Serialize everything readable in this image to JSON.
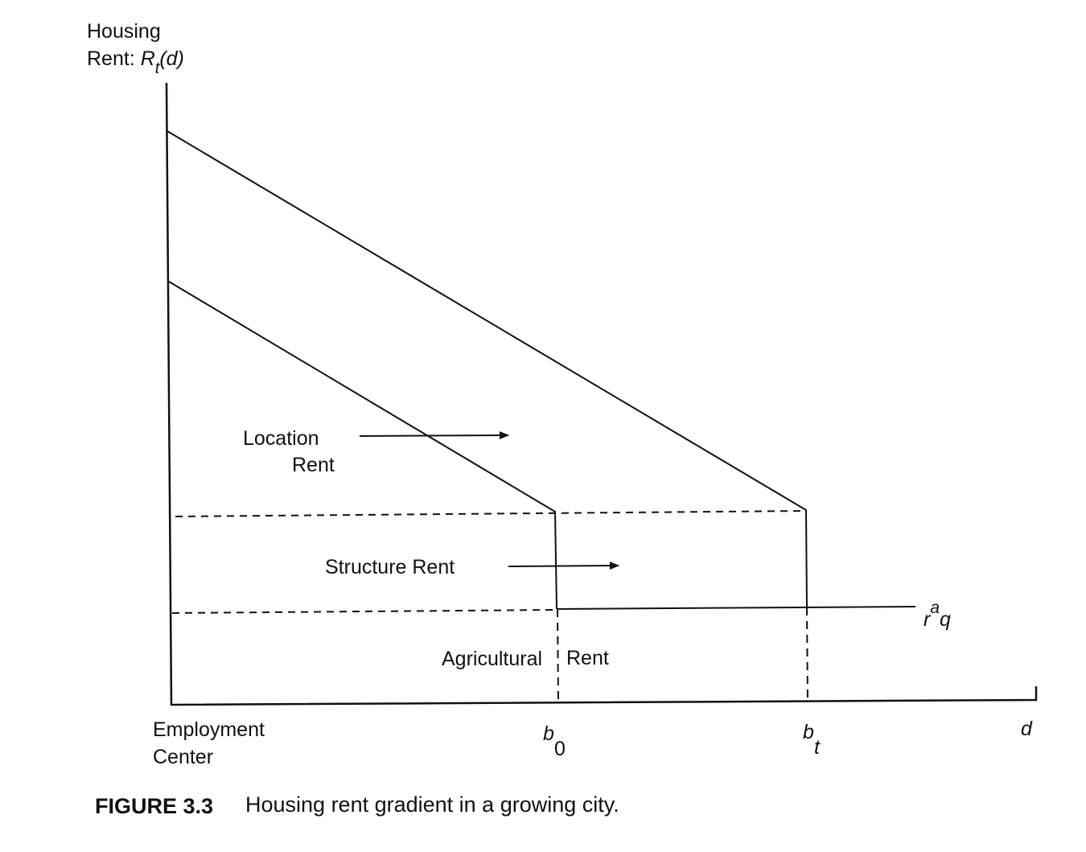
{
  "y_axis": {
    "line1": "Housing",
    "line2_prefix": "Rent: ",
    "line2_var": "R",
    "line2_sub": "t",
    "line2_arg": "(d)"
  },
  "x_axis": {
    "origin_line1": "Employment",
    "origin_line2": "Center",
    "b0_main": "b",
    "b0_sub": "0",
    "bt_main": "b",
    "bt_sub": "t",
    "d_label": "d"
  },
  "regions": {
    "location_line1": "Location",
    "location_line2": "Rent",
    "structure": "Structure Rent",
    "agricultural_left": "Agricultural",
    "agricultural_right": "Rent"
  },
  "agri_level": {
    "r": "r",
    "a": "a",
    "q": "q"
  },
  "caption": {
    "number": "FIGURE 3.3",
    "text": "Housing rent gradient in a growing city."
  }
}
